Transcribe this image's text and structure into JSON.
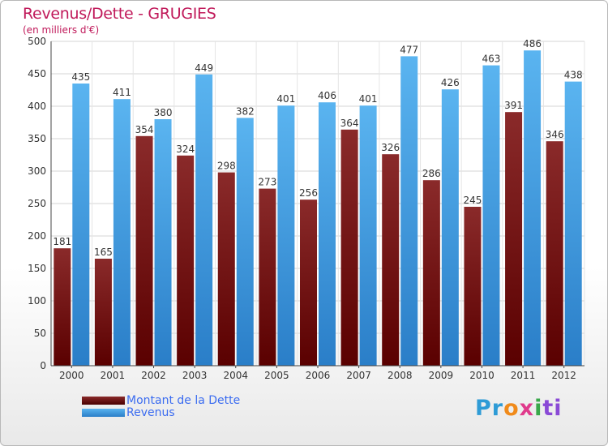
{
  "chart_data": {
    "type": "bar",
    "title": "Revenus/Dette - GRUGIES",
    "subtitle": "(en milliers d'€)",
    "categories": [
      "2000",
      "2001",
      "2002",
      "2003",
      "2004",
      "2005",
      "2006",
      "2007",
      "2008",
      "2009",
      "2010",
      "2011",
      "2012"
    ],
    "series": [
      {
        "name": "Montant de la Dette",
        "color": "#7a1414",
        "values": [
          181,
          165,
          354,
          324,
          298,
          273,
          256,
          364,
          326,
          286,
          245,
          391,
          346
        ]
      },
      {
        "name": "Revenus",
        "color": "#4aa3e8",
        "values": [
          435,
          411,
          380,
          449,
          382,
          401,
          406,
          401,
          477,
          426,
          463,
          486,
          438
        ]
      }
    ],
    "ylim": [
      0,
      500
    ],
    "yticks": [
      0,
      50,
      100,
      150,
      200,
      250,
      300,
      350,
      400,
      450,
      500
    ],
    "grid": true,
    "legend": "bottom-left"
  },
  "branding": {
    "logo_letters": [
      "Pr",
      "o",
      "x",
      "i",
      "ti"
    ]
  }
}
